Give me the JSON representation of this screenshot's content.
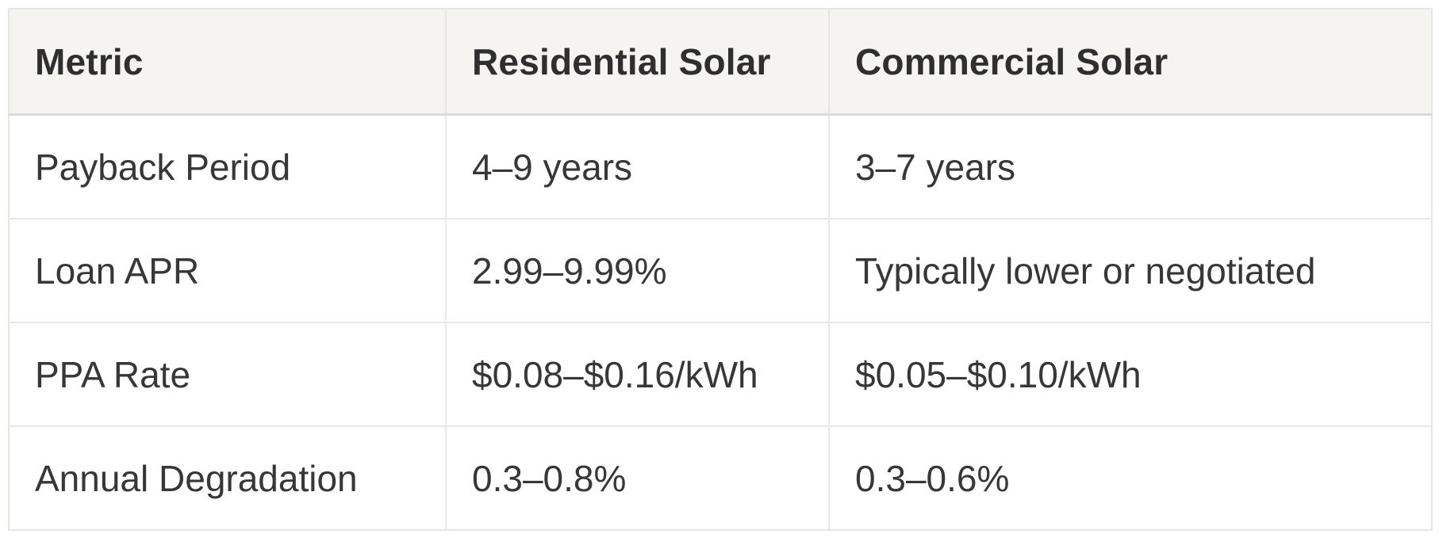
{
  "table": {
    "name": "solar-metrics-comparison",
    "columns": [
      "Metric",
      "Residential Solar",
      "Commercial Solar"
    ],
    "rows": [
      {
        "cells": [
          "Payback Period",
          "4–9 years",
          "3–7 years"
        ]
      },
      {
        "cells": [
          "Loan APR",
          "2.99–9.99%",
          "Typically lower or negotiated"
        ]
      },
      {
        "cells": [
          "PPA Rate",
          "$0.08–$0.16/kWh",
          "$0.05–$0.10/kWh"
        ]
      },
      {
        "cells": [
          "Annual Degradation",
          "0.3–0.8%",
          "0.3–0.6%"
        ]
      }
    ]
  },
  "colors": {
    "header_background": "#f5f4f1",
    "body_background": "#ffffff",
    "border": "#e7e5e2",
    "header_border_bottom": "#dcdad7",
    "header_text": "#2f2f2f",
    "body_text": "#373737"
  }
}
